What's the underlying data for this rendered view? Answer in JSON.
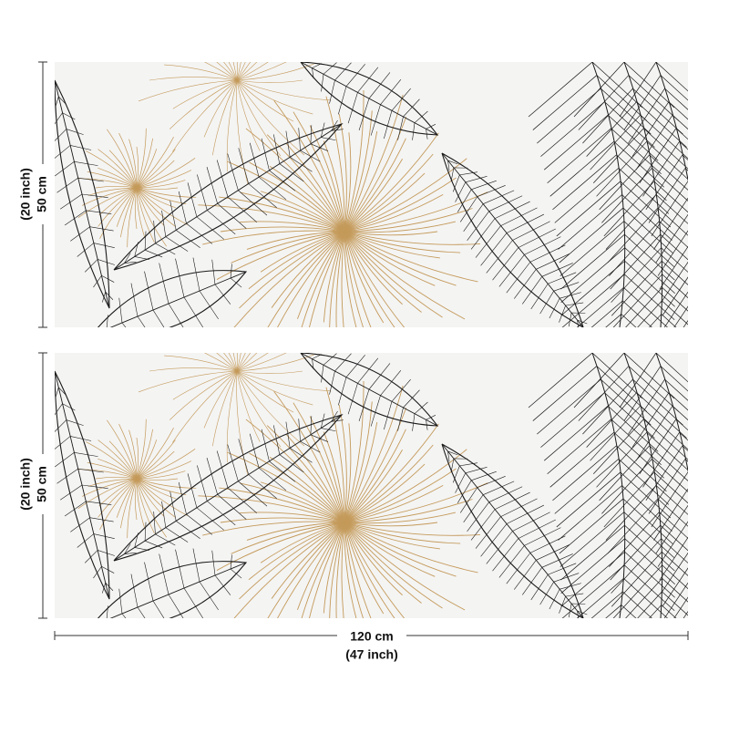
{
  "panels": [
    {
      "height_cm": "50 cm",
      "height_inch": "(20 inch)"
    },
    {
      "height_cm": "50 cm",
      "height_inch": "(20 inch)"
    }
  ],
  "width": {
    "cm": "120 cm",
    "inch": "(47 inch)"
  }
}
